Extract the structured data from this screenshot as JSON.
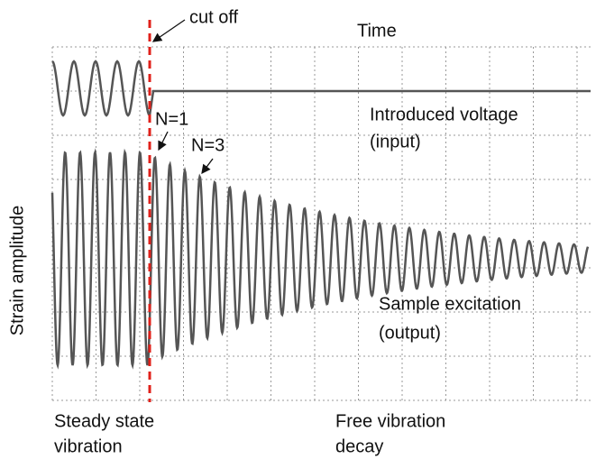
{
  "labels": {
    "cut_off": "cut off",
    "time": "Time",
    "n1": "N=1",
    "n3": "N=3",
    "input_1": "Introduced voltage",
    "input_2": "(input)",
    "y_axis": "Strain amplitude",
    "output_1": "Sample excitation",
    "output_2": "(output)",
    "steady_1": "Steady state",
    "steady_2": "vibration",
    "free_1": "Free vibration",
    "free_2": "decay"
  }
}
